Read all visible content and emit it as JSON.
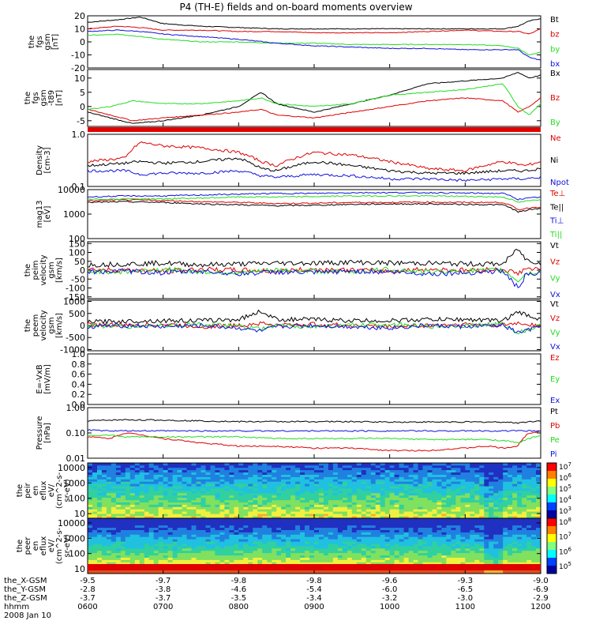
{
  "title": "P4 (TH-E) fields and on-board moments overview",
  "colors": {
    "black": "#000000",
    "red": "#e00000",
    "green": "#22dd22",
    "blue": "#1010dd",
    "mid_green": "#33cc33"
  },
  "chart_data": [
    {
      "type": "line",
      "id": "fgs",
      "ylabel": [
        "the",
        "fgs",
        "gsm",
        "[nT]"
      ],
      "yticks": [
        "20",
        "10",
        "0",
        "-10",
        "-20"
      ],
      "ylim": [
        -20,
        20
      ],
      "x": [
        0,
        0.4,
        0.7,
        1,
        1.5,
        2,
        2.5,
        3,
        3.5,
        4,
        4.5,
        5,
        5.5,
        5.7,
        5.85,
        6
      ],
      "series": [
        {
          "name": "Bt",
          "color": "black",
          "values": [
            15,
            17,
            19,
            14,
            12,
            11,
            10,
            10,
            10,
            10,
            10,
            10,
            10,
            12,
            16,
            18
          ]
        },
        {
          "name": "bz",
          "color": "red",
          "values": [
            10,
            12,
            11,
            9,
            9,
            8,
            8,
            7,
            7,
            7,
            8,
            9,
            8,
            8,
            6,
            10
          ]
        },
        {
          "name": "by",
          "color": "green",
          "values": [
            5,
            6,
            4,
            2,
            0,
            0,
            -1,
            -1,
            -2,
            -2,
            -2,
            -2,
            -3,
            -5,
            -10,
            -8
          ]
        },
        {
          "name": "bx",
          "color": "blue",
          "values": [
            8,
            9,
            8,
            6,
            4,
            2,
            -1,
            -3,
            -4,
            -5,
            -5,
            -6,
            -6,
            -6,
            -12,
            -14
          ]
        }
      ]
    },
    {
      "type": "line",
      "id": "fgs_gsm_bar",
      "ylabel": [
        "the",
        "fgs",
        "gsm",
        "-t89",
        "[nT]"
      ],
      "yticks": [
        "10",
        "5",
        "0",
        "-5"
      ],
      "ylim": [
        -7,
        13
      ],
      "x": [
        0,
        0.3,
        0.6,
        1,
        1.5,
        2,
        2.3,
        2.5,
        3,
        3.5,
        4,
        4.5,
        5,
        5.5,
        5.7,
        5.85,
        6
      ],
      "series": [
        {
          "name": "Bx",
          "color": "black",
          "values": [
            -2,
            -4,
            -6,
            -5,
            -3,
            0,
            5,
            1,
            -2,
            1,
            4,
            8,
            9,
            10,
            12,
            10,
            11
          ]
        },
        {
          "name": "Bz",
          "color": "red",
          "values": [
            -1,
            -3,
            -5,
            -4,
            -3,
            -2,
            -1,
            -3,
            -4,
            -2,
            0,
            2,
            3,
            2,
            -2,
            0,
            3
          ]
        },
        {
          "name": "By",
          "color": "green",
          "values": [
            -1,
            0,
            2,
            1,
            1,
            2,
            3,
            1,
            0,
            1,
            4,
            5,
            6,
            8,
            0,
            -3,
            1
          ]
        }
      ]
    },
    {
      "type": "line",
      "id": "density",
      "scale": "log",
      "ylabel": [
        "Density",
        "[cm-3]"
      ],
      "yticks": [
        "1.0",
        "0.1"
      ],
      "ylim": [
        0.1,
        1.0
      ],
      "x": [
        0,
        0.5,
        0.7,
        1,
        1.5,
        2,
        2.3,
        2.5,
        3,
        3.5,
        4,
        4.5,
        5,
        5.5,
        5.8,
        6
      ],
      "series": [
        {
          "name": "Ne",
          "color": "red",
          "values": [
            0.3,
            0.35,
            0.7,
            0.6,
            0.55,
            0.45,
            0.3,
            0.25,
            0.45,
            0.4,
            0.3,
            0.22,
            0.2,
            0.3,
            0.25,
            0.3
          ]
        },
        {
          "name": "Ni",
          "color": "black",
          "values": [
            0.25,
            0.28,
            0.3,
            0.28,
            0.3,
            0.35,
            0.22,
            0.2,
            0.3,
            0.25,
            0.2,
            0.18,
            0.18,
            0.2,
            0.2,
            0.22
          ]
        },
        {
          "name": "Npot",
          "color": "blue",
          "values": [
            0.2,
            0.2,
            0.17,
            0.18,
            0.18,
            0.2,
            0.16,
            0.15,
            0.17,
            0.16,
            0.14,
            0.14,
            0.13,
            0.14,
            0.14,
            0.15
          ]
        }
      ]
    },
    {
      "type": "line",
      "id": "temperature",
      "scale": "log",
      "ylabel": [
        "mag13",
        "[eV]"
      ],
      "yticks": [
        "10000",
        "1000",
        "100"
      ],
      "ylim": [
        100,
        10000
      ],
      "x": [
        0,
        0.5,
        1,
        1.5,
        2,
        2.5,
        3,
        3.5,
        4,
        4.5,
        5,
        5.5,
        5.7,
        5.85,
        6
      ],
      "series": [
        {
          "name": "Te⊥",
          "color": "red",
          "values": [
            3500,
            3800,
            3600,
            3200,
            3000,
            2700,
            2800,
            3000,
            3000,
            3100,
            3000,
            3000,
            1500,
            1800,
            2000
          ]
        },
        {
          "name": "Te||",
          "color": "black",
          "values": [
            3000,
            3200,
            3000,
            2600,
            2400,
            2200,
            2300,
            2500,
            2600,
            2600,
            2500,
            2400,
            1200,
            1500,
            1700
          ]
        },
        {
          "name": "Ti⊥",
          "color": "blue",
          "values": [
            5000,
            5500,
            5500,
            6000,
            6500,
            7000,
            7000,
            7500,
            7500,
            7500,
            7200,
            7000,
            4000,
            4500,
            5000
          ]
        },
        {
          "name": "Ti||",
          "color": "green",
          "values": [
            4000,
            4200,
            4200,
            4500,
            5000,
            5000,
            5200,
            5500,
            5500,
            5500,
            5300,
            5000,
            3000,
            3500,
            4000
          ]
        }
      ]
    },
    {
      "type": "line",
      "id": "peim_velocity",
      "ylabel": [
        "the",
        "peim",
        "velocity",
        "gsm",
        "[km/s]"
      ],
      "yticks": [
        "150",
        "100",
        "50",
        "0",
        "-50",
        "-100",
        "-150"
      ],
      "ylim": [
        -160,
        160
      ],
      "x": [
        0,
        0.5,
        1,
        1.5,
        2,
        2.5,
        3,
        3.5,
        4,
        4.5,
        5,
        5.5,
        5.7,
        5.8,
        6
      ],
      "series": [
        {
          "name": "Vt",
          "color": "black",
          "values": [
            30,
            35,
            40,
            30,
            35,
            40,
            40,
            45,
            40,
            40,
            35,
            35,
            120,
            60,
            40
          ]
        },
        {
          "name": "Vz",
          "color": "red",
          "values": [
            5,
            0,
            -5,
            5,
            0,
            -5,
            5,
            0,
            -5,
            5,
            0,
            5,
            -20,
            10,
            0
          ]
        },
        {
          "name": "Vy",
          "color": "green",
          "values": [
            -5,
            -10,
            5,
            -10,
            -15,
            0,
            -5,
            -10,
            5,
            -10,
            -5,
            0,
            -60,
            -20,
            -10
          ]
        },
        {
          "name": "Vx",
          "color": "blue",
          "values": [
            -10,
            -5,
            -15,
            -5,
            -20,
            -10,
            -15,
            -5,
            -10,
            -20,
            -15,
            -5,
            -100,
            -30,
            -20
          ]
        }
      ]
    },
    {
      "type": "line",
      "id": "peem_velocity",
      "ylabel": [
        "the",
        "peem",
        "velocity",
        "gsm",
        "[km/s]"
      ],
      "yticks": [
        "1000",
        "500",
        "0",
        "-500",
        "-1000"
      ],
      "ylim": [
        -1050,
        1050
      ],
      "x": [
        0,
        0.5,
        1,
        1.5,
        2,
        2.3,
        2.5,
        3,
        3.5,
        4,
        4.5,
        5,
        5.5,
        5.7,
        6
      ],
      "series": [
        {
          "name": "Vt",
          "color": "black",
          "values": [
            150,
            180,
            200,
            200,
            250,
            600,
            250,
            250,
            200,
            200,
            250,
            250,
            200,
            550,
            250
          ]
        },
        {
          "name": "Vz",
          "color": "red",
          "values": [
            50,
            0,
            50,
            -50,
            0,
            100,
            0,
            50,
            0,
            -50,
            0,
            50,
            0,
            100,
            0
          ]
        },
        {
          "name": "Vy",
          "color": "green",
          "values": [
            0,
            -50,
            0,
            50,
            -50,
            -150,
            0,
            -50,
            0,
            50,
            -50,
            0,
            50,
            -300,
            0
          ]
        },
        {
          "name": "Vx",
          "color": "blue",
          "values": [
            -50,
            0,
            -50,
            0,
            -100,
            -250,
            -50,
            0,
            -50,
            -100,
            0,
            -50,
            0,
            -300,
            -50
          ]
        }
      ]
    },
    {
      "type": "line",
      "id": "efield",
      "ylabel": [
        "E=-VxB",
        "[mV/m]"
      ],
      "yticks": [
        "1.0",
        "0.8",
        "0.6",
        "0.4",
        "0.2",
        "0.0"
      ],
      "ylim": [
        0,
        1
      ],
      "series": [
        {
          "name": "Ez",
          "color": "red",
          "values": []
        },
        {
          "name": "Ey",
          "color": "green",
          "values": []
        },
        {
          "name": "Ex",
          "color": "blue",
          "values": []
        }
      ]
    },
    {
      "type": "line",
      "id": "pressure",
      "scale": "log",
      "ylabel": [
        "Pressure",
        "[nPa]"
      ],
      "yticks": [
        "1.00",
        "0.10",
        "0.01"
      ],
      "ylim": [
        0.01,
        1.0
      ],
      "x": [
        0,
        0.3,
        0.5,
        1,
        1.5,
        2,
        2.5,
        3,
        3.5,
        4,
        4.5,
        5,
        5.3,
        5.5,
        5.7,
        5.85,
        6
      ],
      "series": [
        {
          "name": "Pt",
          "color": "black",
          "values": [
            0.3,
            0.32,
            0.33,
            0.32,
            0.3,
            0.28,
            0.28,
            0.28,
            0.28,
            0.27,
            0.27,
            0.27,
            0.27,
            0.27,
            0.25,
            0.28,
            0.3
          ]
        },
        {
          "name": "Pb",
          "color": "red",
          "values": [
            0.07,
            0.06,
            0.1,
            0.06,
            0.04,
            0.03,
            0.03,
            0.025,
            0.025,
            0.02,
            0.02,
            0.025,
            0.03,
            0.025,
            0.03,
            0.1,
            0.12
          ]
        },
        {
          "name": "Pe",
          "color": "green",
          "values": [
            0.08,
            0.08,
            0.07,
            0.07,
            0.07,
            0.07,
            0.06,
            0.06,
            0.06,
            0.06,
            0.055,
            0.055,
            0.055,
            0.05,
            0.04,
            0.06,
            0.08
          ]
        },
        {
          "name": "Pi",
          "color": "blue",
          "values": [
            0.13,
            0.12,
            0.12,
            0.12,
            0.12,
            0.12,
            0.12,
            0.12,
            0.12,
            0.12,
            0.12,
            0.12,
            0.12,
            0.12,
            0.12,
            0.12,
            0.12
          ]
        }
      ]
    },
    {
      "type": "heatmap",
      "id": "peir_eflux",
      "scale": "log",
      "ylabel": [
        "the",
        "peir",
        "en",
        "eflux",
        "eV/",
        "(cm^2-s-",
        "sr-eV)"
      ],
      "yticks": [
        "10000",
        "1000",
        "100",
        "10"
      ],
      "ylim": [
        5,
        20000
      ],
      "colorbar_ticks": [
        "10^7",
        "10^6",
        "10^5",
        "10^4",
        "10^3"
      ]
    },
    {
      "type": "heatmap",
      "id": "peer_eflux",
      "scale": "log",
      "ylabel": [
        "the",
        "peer",
        "en",
        "eflux",
        "eV/",
        "(cm^2-s-",
        "sr-eV)"
      ],
      "yticks": [
        "10000",
        "1000",
        "100",
        "10"
      ],
      "ylim": [
        5,
        20000
      ],
      "colorbar_ticks": [
        "10^8",
        "10^7",
        "10^6",
        "10^5"
      ]
    }
  ],
  "xaxis": {
    "rows": [
      {
        "label": "the_X-GSM",
        "values": [
          "-9.5",
          "-9.7",
          "-9.8",
          "-9.8",
          "-9.6",
          "-9.3",
          "-9.0"
        ]
      },
      {
        "label": "the_Y-GSM",
        "values": [
          "-2.8",
          "-3.8",
          "-4.6",
          "-5.4",
          "-6.0",
          "-6.5",
          "-6.9"
        ]
      },
      {
        "label": "the_Z-GSM",
        "values": [
          "-3.7",
          "-3.7",
          "-3.5",
          "-3.4",
          "-3.2",
          "-3.0",
          "-2.9"
        ]
      },
      {
        "label": "hhmm",
        "values": [
          "0600",
          "0700",
          "0800",
          "0900",
          "1000",
          "1100",
          "1200"
        ]
      }
    ],
    "date": "2008 Jan 10"
  }
}
